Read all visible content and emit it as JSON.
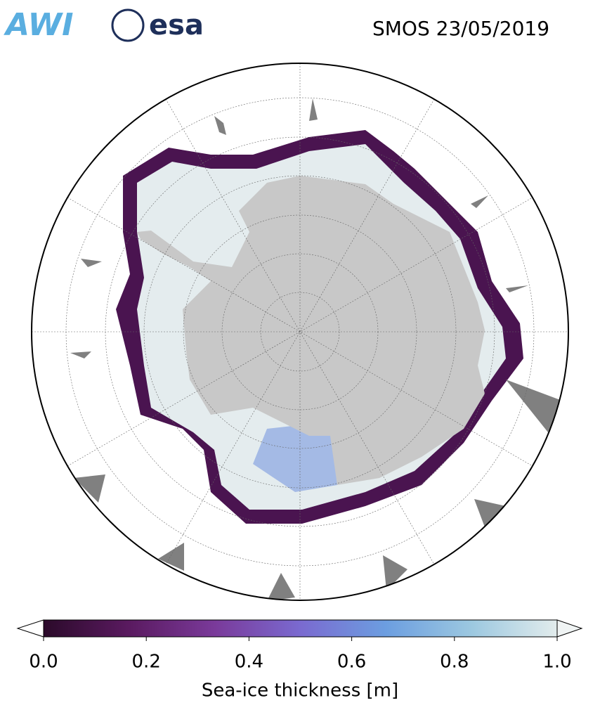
{
  "logos": {
    "awi": "AWI",
    "esa": "esa"
  },
  "title": "SMOS 23/05/2019",
  "colorbar": {
    "label": "Sea-ice thickness [m]",
    "lim": [
      0,
      1
    ],
    "ticks": [
      {
        "value": 0,
        "label": "0.0"
      },
      {
        "value": 0.2,
        "label": "0.2"
      },
      {
        "value": 0.4,
        "label": "0.4"
      },
      {
        "value": 0.6,
        "label": "0.6"
      },
      {
        "value": 0.8,
        "label": "0.8"
      },
      {
        "value": 1,
        "label": "1.0"
      }
    ],
    "colors": [
      "#2b0a2a",
      "#5a1a60",
      "#7a3a9a",
      "#7a6ad0",
      "#6c9ee0",
      "#9cc8e0",
      "#e2ecec"
    ]
  }
}
